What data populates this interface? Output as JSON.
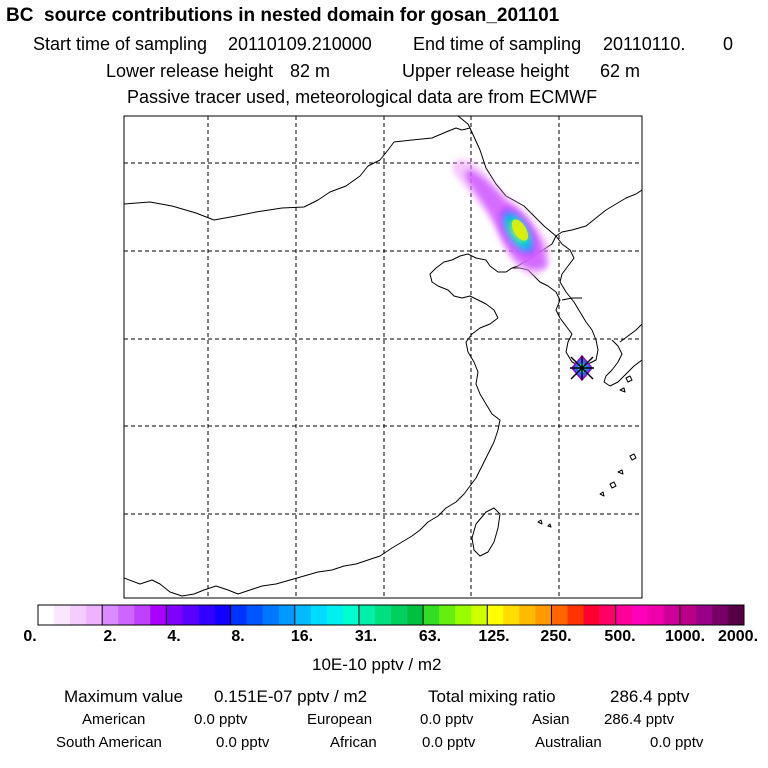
{
  "title": "BC  source contributions in nested domain for gosan_201101",
  "header": {
    "start_label": "Start time of sampling",
    "start_value": "20110109.210000",
    "end_label": "End time of sampling",
    "end_value": "20110110.",
    "end_suffix": "0",
    "lower_label": "Lower release height",
    "lower_value": "82 m",
    "upper_label": "Upper release height",
    "upper_value": "62 m",
    "note": "Passive tracer used, meteorological data are from ECMWF"
  },
  "legend": {
    "unit": "10E-10 pptv / m2",
    "ticks": [
      "0.",
      "2.",
      "4.",
      "8.",
      "16.",
      "31.",
      "63.",
      "125.",
      "250.",
      "500.",
      "1000.",
      "2000."
    ],
    "colors": [
      "#ffffff",
      "#fbe6ff",
      "#f5ccff",
      "#eeb3ff",
      "#d98cff",
      "#cc66ff",
      "#bf40ff",
      "#aa00ff",
      "#7f00ff",
      "#5a00ff",
      "#3300ff",
      "#1100ff",
      "#0033ff",
      "#0055ff",
      "#0077ff",
      "#0099ff",
      "#00bbff",
      "#00dcff",
      "#00f0f0",
      "#00ffd0",
      "#00f0aa",
      "#00e080",
      "#00d060",
      "#00c040",
      "#33dd22",
      "#66ee11",
      "#99ff00",
      "#ccff00",
      "#ffff00",
      "#ffdd00",
      "#ffbb00",
      "#ff9900",
      "#ff6600",
      "#ff3300",
      "#ff0033",
      "#ff0066",
      "#ff0099",
      "#ff00bb",
      "#ee00aa",
      "#cc0099",
      "#bb0088",
      "#990088",
      "#770066",
      "#550044"
    ]
  },
  "stats": {
    "max_label": "Maximum value",
    "max_value": "0.151E-07 pptv / m2",
    "total_label": "Total mixing ratio",
    "total_value": "286.4 pptv",
    "american_label": "American",
    "american_value": "0.0 pptv",
    "european_label": "European",
    "european_value": "0.0 pptv",
    "asian_label": "Asian",
    "asian_value": "286.4 pptv",
    "southamerican_label": "South American",
    "southamerican_value": "0.0 pptv",
    "african_label": "African",
    "african_value": "0.0 pptv",
    "australian_label": "Australian",
    "australian_value": "0.0 pptv"
  }
}
